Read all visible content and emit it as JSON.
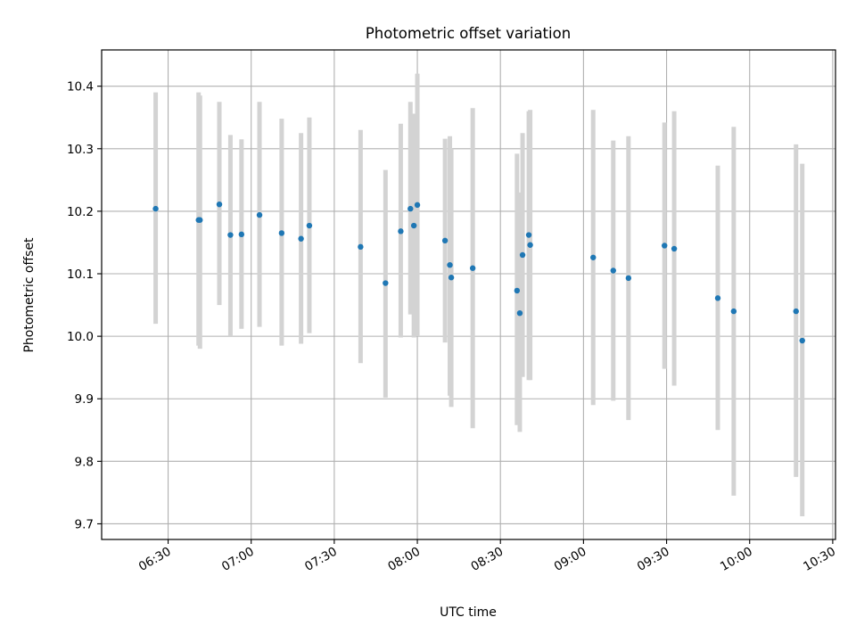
{
  "chart_data": {
    "type": "scatter",
    "title": "Photometric offset variation",
    "xlabel": "UTC time",
    "ylabel": "Photometric offset",
    "xlim": [
      "06:06",
      "10:31"
    ],
    "ylim": [
      9.675,
      10.458
    ],
    "grid": true,
    "x_ticks": [
      "06:30",
      "07:00",
      "07:30",
      "08:00",
      "08:30",
      "09:00",
      "09:30",
      "10:00",
      "10:30"
    ],
    "y_ticks": [
      "9.7",
      "9.8",
      "9.9",
      "10.0",
      "10.1",
      "10.2",
      "10.3",
      "10.4"
    ],
    "colors": {
      "point": "#1f77b4",
      "errorbar": "#d3d3d3",
      "grid": "#b0b0b0"
    },
    "points": [
      {
        "x": "06:25:30",
        "y": 10.204,
        "ylow": 10.02,
        "yhigh": 10.39
      },
      {
        "x": "06:41:00",
        "y": 10.186,
        "ylow": 9.985,
        "yhigh": 10.39
      },
      {
        "x": "06:41:30",
        "y": 10.186,
        "ylow": 9.98,
        "yhigh": 10.385
      },
      {
        "x": "06:48:30",
        "y": 10.211,
        "ylow": 10.05,
        "yhigh": 10.375
      },
      {
        "x": "06:52:30",
        "y": 10.162,
        "ylow": 10.0,
        "yhigh": 10.322
      },
      {
        "x": "06:56:30",
        "y": 10.163,
        "ylow": 10.012,
        "yhigh": 10.315
      },
      {
        "x": "07:03:00",
        "y": 10.194,
        "ylow": 10.015,
        "yhigh": 10.375
      },
      {
        "x": "07:11:00",
        "y": 10.165,
        "ylow": 9.985,
        "yhigh": 10.348
      },
      {
        "x": "07:18:00",
        "y": 10.156,
        "ylow": 9.988,
        "yhigh": 10.325
      },
      {
        "x": "07:21:00",
        "y": 10.177,
        "ylow": 10.005,
        "yhigh": 10.35
      },
      {
        "x": "07:39:30",
        "y": 10.143,
        "ylow": 9.957,
        "yhigh": 10.33
      },
      {
        "x": "07:48:30",
        "y": 10.085,
        "ylow": 9.902,
        "yhigh": 10.266
      },
      {
        "x": "07:54:00",
        "y": 10.168,
        "ylow": 9.998,
        "yhigh": 10.34
      },
      {
        "x": "07:57:30",
        "y": 10.204,
        "ylow": 10.035,
        "yhigh": 10.375
      },
      {
        "x": "07:58:45",
        "y": 10.177,
        "ylow": 9.998,
        "yhigh": 10.356
      },
      {
        "x": "08:00:00",
        "y": 10.21,
        "ylow": 10.0,
        "yhigh": 10.42
      },
      {
        "x": "08:10:00",
        "y": 10.153,
        "ylow": 9.99,
        "yhigh": 10.316
      },
      {
        "x": "08:11:45",
        "y": 10.114,
        "ylow": 9.905,
        "yhigh": 10.32
      },
      {
        "x": "08:12:15",
        "y": 10.094,
        "ylow": 9.887,
        "yhigh": 10.3
      },
      {
        "x": "08:20:00",
        "y": 10.109,
        "ylow": 9.853,
        "yhigh": 10.365
      },
      {
        "x": "08:36:00",
        "y": 10.073,
        "ylow": 9.858,
        "yhigh": 10.292
      },
      {
        "x": "08:37:00",
        "y": 10.037,
        "ylow": 9.847,
        "yhigh": 10.23
      },
      {
        "x": "08:38:00",
        "y": 10.13,
        "ylow": 9.935,
        "yhigh": 10.325
      },
      {
        "x": "08:40:15",
        "y": 10.162,
        "ylow": 9.93,
        "yhigh": 10.36
      },
      {
        "x": "08:40:45",
        "y": 10.146,
        "ylow": 9.93,
        "yhigh": 10.362
      },
      {
        "x": "09:03:30",
        "y": 10.126,
        "ylow": 9.89,
        "yhigh": 10.362
      },
      {
        "x": "09:10:45",
        "y": 10.105,
        "ylow": 9.897,
        "yhigh": 10.313
      },
      {
        "x": "09:16:15",
        "y": 10.093,
        "ylow": 9.866,
        "yhigh": 10.32
      },
      {
        "x": "09:29:15",
        "y": 10.145,
        "ylow": 9.948,
        "yhigh": 10.342
      },
      {
        "x": "09:32:45",
        "y": 10.14,
        "ylow": 9.921,
        "yhigh": 10.36
      },
      {
        "x": "09:48:30",
        "y": 10.061,
        "ylow": 9.85,
        "yhigh": 10.273
      },
      {
        "x": "09:54:15",
        "y": 10.04,
        "ylow": 9.745,
        "yhigh": 10.335
      },
      {
        "x": "10:16:45",
        "y": 10.04,
        "ylow": 9.775,
        "yhigh": 10.307
      },
      {
        "x": "10:19:00",
        "y": 9.993,
        "ylow": 9.712,
        "yhigh": 10.276
      }
    ]
  }
}
